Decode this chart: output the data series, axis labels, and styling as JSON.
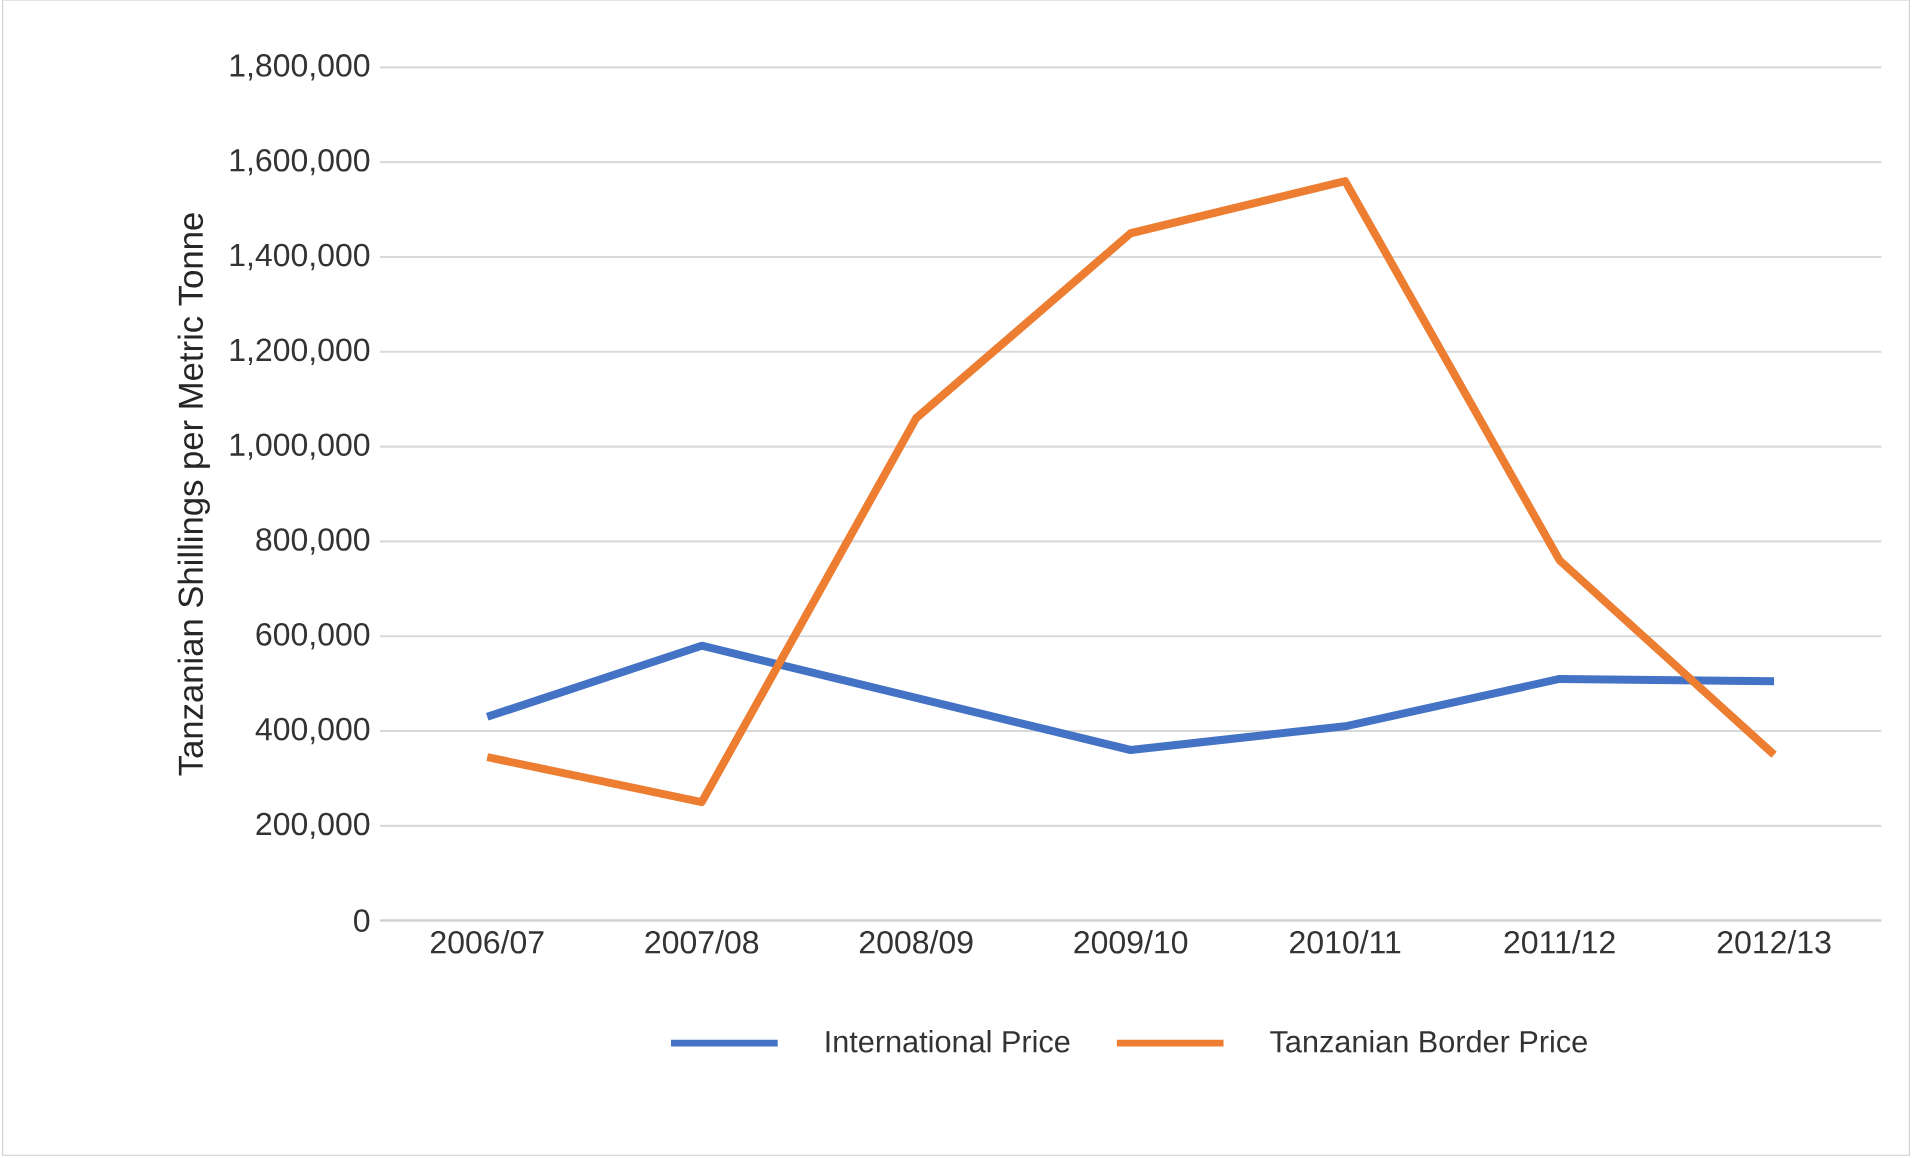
{
  "chart_data": {
    "type": "line",
    "ylabel": "Tanzanian Shillings per Metric Tonne",
    "categories": [
      "2006/07",
      "2007/08",
      "2008/09",
      "2009/10",
      "2010/11",
      "2011/12",
      "2012/13"
    ],
    "series": [
      {
        "name": "International Price",
        "color": "#4472c4",
        "values": [
          430000,
          580000,
          470000,
          360000,
          410000,
          510000,
          505000
        ]
      },
      {
        "name": "Tanzanian Border Price",
        "color": "#ed7d31",
        "values": [
          345000,
          250000,
          1060000,
          1450000,
          1560000,
          760000,
          350000
        ]
      }
    ],
    "ylim": [
      0,
      1800000
    ],
    "yticks": [
      {
        "value": 0,
        "label": "0"
      },
      {
        "value": 200000,
        "label": "200,000"
      },
      {
        "value": 400000,
        "label": "400,000"
      },
      {
        "value": 600000,
        "label": "600,000"
      },
      {
        "value": 800000,
        "label": "800,000"
      },
      {
        "value": 1000000,
        "label": "1,000,000"
      },
      {
        "value": 1200000,
        "label": "1,200,000"
      },
      {
        "value": 1400000,
        "label": "1,400,000"
      },
      {
        "value": 1600000,
        "label": "1,600,000"
      },
      {
        "value": 1800000,
        "label": "1,800,000"
      }
    ],
    "grid": "y",
    "legend": "bottom",
    "marker": "none",
    "line_style": "solid"
  }
}
